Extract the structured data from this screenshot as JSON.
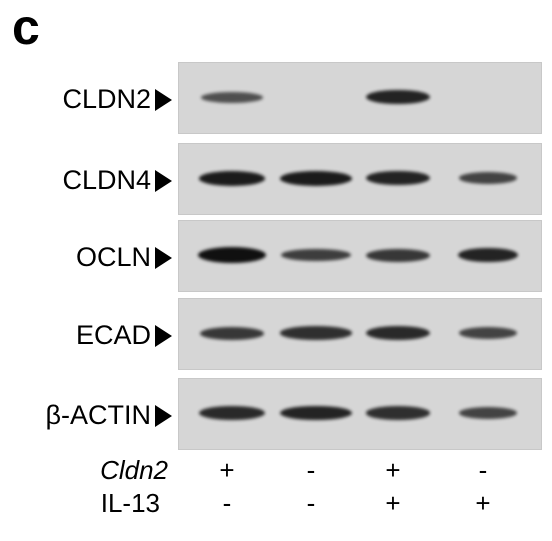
{
  "panel_letter": "c",
  "blots": [
    {
      "label": "CLDN2",
      "intensity": [
        0.5,
        0.0,
        0.85,
        0.0
      ]
    },
    {
      "label": "CLDN4",
      "intensity": [
        0.9,
        0.9,
        0.85,
        0.6
      ]
    },
    {
      "label": "OCLN",
      "intensity": [
        1.0,
        0.65,
        0.7,
        0.85
      ]
    },
    {
      "label": "ECAD",
      "intensity": [
        0.7,
        0.75,
        0.8,
        0.6
      ]
    },
    {
      "label": "β-ACTIN",
      "intensity": [
        0.8,
        0.85,
        0.75,
        0.6
      ]
    }
  ],
  "conditions": [
    {
      "label": "Cldn2",
      "italic": true,
      "values": [
        "+",
        "-",
        "+",
        "-"
      ]
    },
    {
      "label": "IL-13",
      "italic": false,
      "values": [
        "-",
        "-",
        "+",
        "+"
      ]
    }
  ]
}
